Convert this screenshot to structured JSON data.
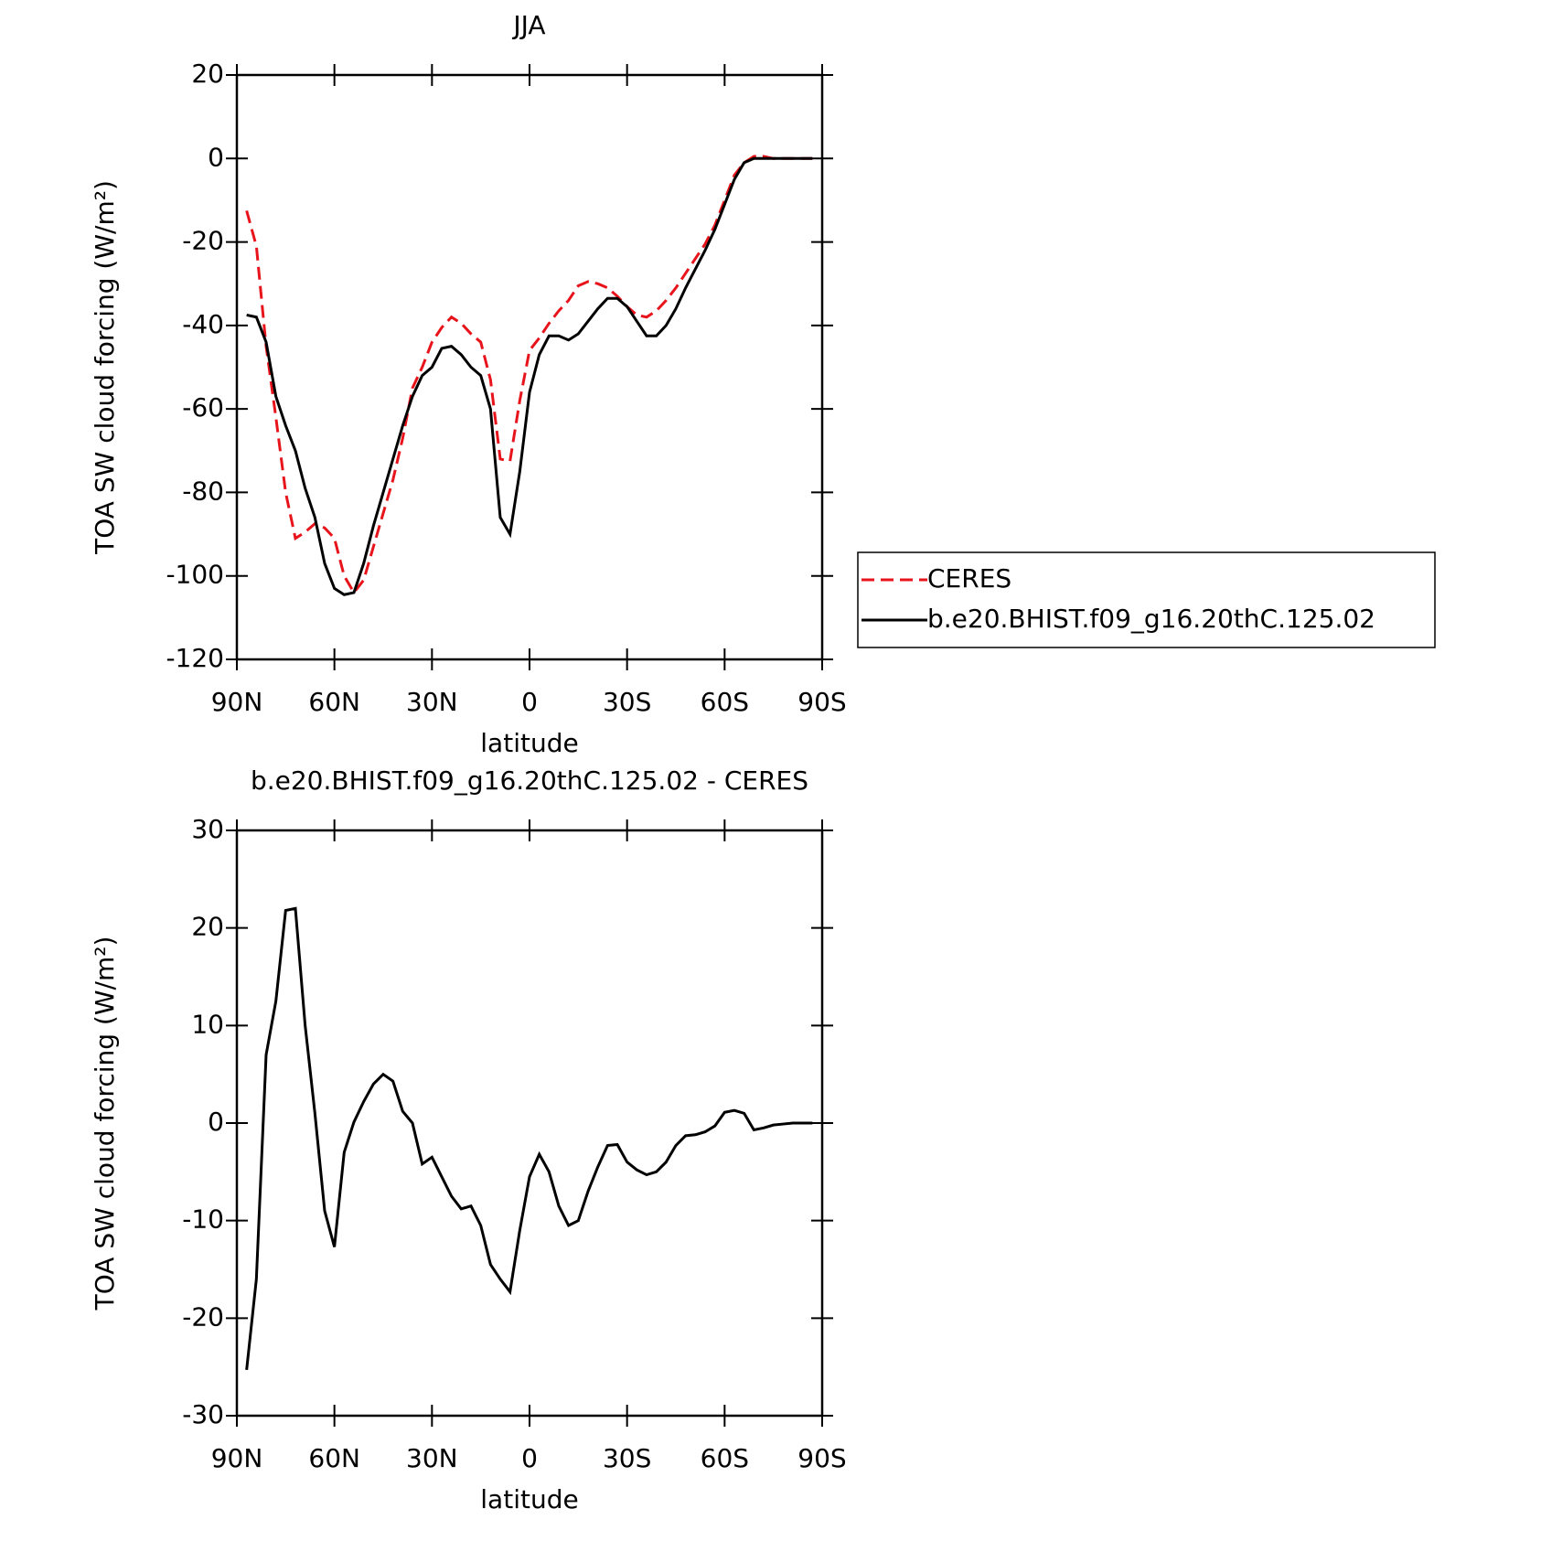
{
  "chart_data": [
    {
      "type": "line",
      "title": "JJA",
      "xlabel": "latitude",
      "ylabel": "TOA SW cloud forcing (W/m²)",
      "x": [
        87,
        84,
        81,
        78,
        75,
        72,
        69,
        66,
        63,
        60,
        57,
        54,
        51,
        48,
        45,
        42,
        39,
        36,
        33,
        30,
        27,
        24,
        21,
        18,
        15,
        12,
        9,
        6,
        3,
        0,
        -3,
        -6,
        -9,
        -12,
        -15,
        -18,
        -21,
        -24,
        -27,
        -30,
        -33,
        -36,
        -39,
        -42,
        -45,
        -48,
        -51,
        -54,
        -57,
        -60,
        -63,
        -66,
        -69,
        -72,
        -75,
        -78,
        -81,
        -84,
        -87
      ],
      "series": [
        {
          "name": "CERES",
          "color": "#e8141c",
          "dash": "dashed",
          "values": [
            -12.5,
            -21,
            -45,
            -62,
            -80,
            -91,
            -89.5,
            -87.5,
            -88.5,
            -91,
            -100,
            -104,
            -101,
            -93,
            -85,
            -77,
            -67,
            -55,
            -50,
            -44,
            -40.5,
            -38,
            -39.5,
            -42,
            -44,
            -53,
            -72,
            -72.5,
            -58,
            -46,
            -43,
            -39.5,
            -36.5,
            -34,
            -30.5,
            -29.5,
            -30,
            -31,
            -33,
            -35.5,
            -37.5,
            -38,
            -36.5,
            -34,
            -31,
            -27.5,
            -24,
            -20.5,
            -16,
            -10,
            -4,
            -1,
            0.5,
            0.5,
            0,
            0,
            0,
            0,
            0
          ]
        },
        {
          "name": "b.e20.BHIST.f09_g16.20thC.125.02",
          "color": "#000000",
          "dash": "solid",
          "values": [
            -37.5,
            -38,
            -44,
            -57,
            -64,
            -70,
            -79,
            -86,
            -97,
            -103,
            -104.5,
            -104,
            -97,
            -88,
            -80,
            -72,
            -64,
            -57,
            -52,
            -50,
            -45.5,
            -45,
            -47,
            -50,
            -52,
            -60,
            -86,
            -90,
            -75,
            -56,
            -47,
            -42.5,
            -42.5,
            -43.5,
            -42,
            -39,
            -36,
            -33.5,
            -33.5,
            -35.5,
            -39,
            -42.5,
            -42.5,
            -40,
            -36,
            -31,
            -26.5,
            -22,
            -17,
            -11,
            -5,
            -1,
            0,
            0,
            0,
            0,
            0,
            0,
            0
          ]
        }
      ],
      "xlim": [
        90,
        -90
      ],
      "xticks": [
        {
          "value": 90,
          "label": "90N"
        },
        {
          "value": 60,
          "label": "60N"
        },
        {
          "value": 30,
          "label": "30N"
        },
        0,
        {
          "value": -30,
          "label": "30S"
        },
        {
          "value": -60,
          "label": "60S"
        },
        {
          "value": -90,
          "label": "90S"
        }
      ],
      "ylim": [
        -120,
        20
      ],
      "yticks": [
        -120,
        -100,
        -80,
        -60,
        -40,
        -20,
        0,
        20
      ],
      "legend": "outside-right"
    },
    {
      "type": "line",
      "title": "b.e20.BHIST.f09_g16.20thC.125.02 - CERES",
      "xlabel": "latitude",
      "ylabel": "TOA SW cloud forcing (W/m²)",
      "x": [
        87,
        84,
        81,
        78,
        75,
        72,
        69,
        66,
        63,
        60,
        57,
        54,
        51,
        48,
        45,
        42,
        39,
        36,
        33,
        30,
        27,
        24,
        21,
        18,
        15,
        12,
        9,
        6,
        3,
        0,
        -3,
        -6,
        -9,
        -12,
        -15,
        -18,
        -21,
        -24,
        -27,
        -30,
        -33,
        -36,
        -39,
        -42,
        -45,
        -48,
        -51,
        -54,
        -57,
        -60,
        -63,
        -66,
        -69,
        -72,
        -75,
        -78,
        -81,
        -84,
        -87
      ],
      "series": [
        {
          "color": "#000000",
          "dash": "solid",
          "values": [
            -25.3,
            -16,
            7,
            12.5,
            21.8,
            22,
            10,
            1,
            -9,
            -12.7,
            -3,
            0.1,
            2.2,
            4,
            5,
            4.3,
            1.2,
            0,
            -4.2,
            -3.5,
            -5.5,
            -7.5,
            -8.8,
            -8.5,
            -10.5,
            -14.5,
            -16,
            -17.3,
            -11,
            -5.5,
            -3.2,
            -5,
            -8.5,
            -10.5,
            -10,
            -7,
            -4.5,
            -2.3,
            -2.2,
            -4,
            -4.8,
            -5.3,
            -5,
            -4,
            -2.3,
            -1.3,
            -1.2,
            -0.9,
            -0.3,
            1.1,
            1.3,
            1,
            -0.7,
            -0.5,
            -0.2,
            -0.1,
            0,
            0,
            0
          ]
        }
      ],
      "xlim": [
        90,
        -90
      ],
      "xticks": [
        {
          "value": 90,
          "label": "90N"
        },
        {
          "value": 60,
          "label": "60N"
        },
        {
          "value": 30,
          "label": "30N"
        },
        0,
        {
          "value": -30,
          "label": "30S"
        },
        {
          "value": -60,
          "label": "60S"
        },
        {
          "value": -90,
          "label": "90S"
        }
      ],
      "ylim": [
        -30,
        30
      ],
      "yticks": [
        -30,
        -20,
        -10,
        0,
        10,
        20,
        30
      ]
    }
  ]
}
